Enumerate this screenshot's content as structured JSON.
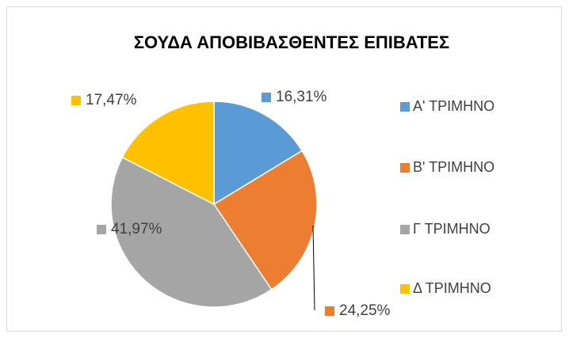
{
  "chart_data": {
    "type": "pie",
    "title": "ΣΟΥΔΑ ΑΠΟΒΙΒΑΣΘΕΝΤΕΣ ΕΠΙΒΑΤΕΣ",
    "categories": [
      "Α' ΤΡΙΜΗΝΟ",
      "Β' ΤΡΙΜΗΝΟ",
      "Γ ΤΡΙΜΗΝΟ",
      "Δ ΤΡΙΜΗΝΟ"
    ],
    "values": [
      16.31,
      24.25,
      41.97,
      17.47
    ],
    "value_labels": [
      "16,31%",
      "24,25%",
      "41,97%",
      "17,47%"
    ],
    "colors": [
      "#5b9bd5",
      "#ed7d31",
      "#a5a5a5",
      "#ffc000"
    ],
    "legend": "right"
  }
}
